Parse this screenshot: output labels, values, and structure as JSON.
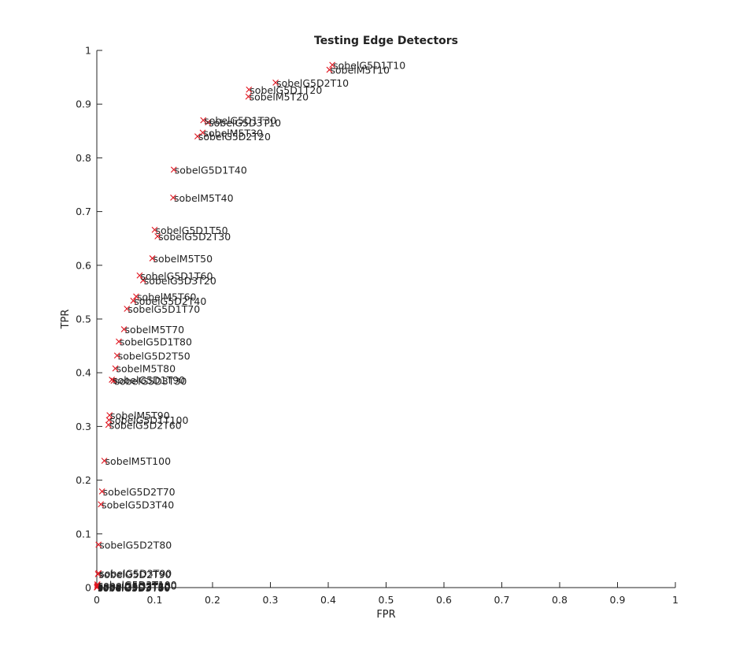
{
  "chart_data": {
    "type": "scatter",
    "title": "Testing Edge Detectors",
    "xlabel": "FPR",
    "ylabel": "TPR",
    "xlim": [
      0,
      1
    ],
    "ylim": [
      0,
      1
    ],
    "x_ticks": [
      "0",
      "0.1",
      "0.2",
      "0.3",
      "0.4",
      "0.5",
      "0.6",
      "0.7",
      "0.8",
      "0.9",
      "1"
    ],
    "y_ticks": [
      "0",
      "0.1",
      "0.2",
      "0.3",
      "0.4",
      "0.5",
      "0.6",
      "0.7",
      "0.8",
      "0.9",
      "1"
    ],
    "grid": false,
    "marker": "x",
    "marker_color": "#e0141e",
    "points": [
      {
        "label": "sobelG5D1T10",
        "x": 0.407,
        "y": 0.973
      },
      {
        "label": "sobelM5T10",
        "x": 0.402,
        "y": 0.964
      },
      {
        "label": "sobelG5D2T10",
        "x": 0.309,
        "y": 0.94
      },
      {
        "label": "sobelG5D1T20",
        "x": 0.263,
        "y": 0.927
      },
      {
        "label": "sobelM5T20",
        "x": 0.262,
        "y": 0.914
      },
      {
        "label": "sobelG5D1T30",
        "x": 0.184,
        "y": 0.87
      },
      {
        "label": "sobelG5D3T10",
        "x": 0.192,
        "y": 0.866
      },
      {
        "label": "sobelM5T30",
        "x": 0.183,
        "y": 0.847
      },
      {
        "label": "sobelG5D2T20",
        "x": 0.174,
        "y": 0.84
      },
      {
        "label": "sobelG5D1T40",
        "x": 0.133,
        "y": 0.778
      },
      {
        "label": "sobelM5T40",
        "x": 0.132,
        "y": 0.726
      },
      {
        "label": "sobelG5D1T50",
        "x": 0.1,
        "y": 0.666
      },
      {
        "label": "sobelG5D2T30",
        "x": 0.105,
        "y": 0.654
      },
      {
        "label": "sobelM5T50",
        "x": 0.096,
        "y": 0.613
      },
      {
        "label": "sobelG5D1T60",
        "x": 0.074,
        "y": 0.581
      },
      {
        "label": "sobelG5D3T20",
        "x": 0.08,
        "y": 0.572
      },
      {
        "label": "sobelM5T60",
        "x": 0.068,
        "y": 0.542
      },
      {
        "label": "sobelG5D2T40",
        "x": 0.063,
        "y": 0.534
      },
      {
        "label": "sobelG5D1T70",
        "x": 0.052,
        "y": 0.519
      },
      {
        "label": "sobelM5T70",
        "x": 0.047,
        "y": 0.481
      },
      {
        "label": "sobelG5D1T80",
        "x": 0.038,
        "y": 0.458
      },
      {
        "label": "sobelG5D2T50",
        "x": 0.035,
        "y": 0.432
      },
      {
        "label": "sobelM5T80",
        "x": 0.032,
        "y": 0.408
      },
      {
        "label": "sobelG5D1T90",
        "x": 0.026,
        "y": 0.387
      },
      {
        "label": "sobelG5D3T30",
        "x": 0.029,
        "y": 0.385
      },
      {
        "label": "sobelM5T90",
        "x": 0.022,
        "y": 0.321
      },
      {
        "label": "sobelG5D1T100",
        "x": 0.021,
        "y": 0.312
      },
      {
        "label": "sobelG5D2T60",
        "x": 0.02,
        "y": 0.303
      },
      {
        "label": "sobelM5T100",
        "x": 0.013,
        "y": 0.236
      },
      {
        "label": "sobelG5D2T70",
        "x": 0.009,
        "y": 0.179
      },
      {
        "label": "sobelG5D3T40",
        "x": 0.007,
        "y": 0.155
      },
      {
        "label": "sobelG5D2T80",
        "x": 0.003,
        "y": 0.08
      },
      {
        "label": "sobelG5D3T90",
        "x": 0.003,
        "y": 0.027
      },
      {
        "label": "sobelG5D2T90",
        "x": 0.002,
        "y": 0.025
      },
      {
        "label": "sobelG5D3T100",
        "x": 0.001,
        "y": 0.006
      },
      {
        "label": "sobelG5D2T100",
        "x": 0.001,
        "y": 0.004
      },
      {
        "label": "sobelG5D3T50",
        "x": 0.001,
        "y": 0.002
      },
      {
        "label": "sobelG5D3T60",
        "x": 0.0005,
        "y": 0.001
      },
      {
        "label": "sobelG5D3T70",
        "x": 0.0003,
        "y": 0.0005
      },
      {
        "label": "sobelG5D3T80",
        "x": 0.0002,
        "y": 0.0002
      }
    ]
  }
}
